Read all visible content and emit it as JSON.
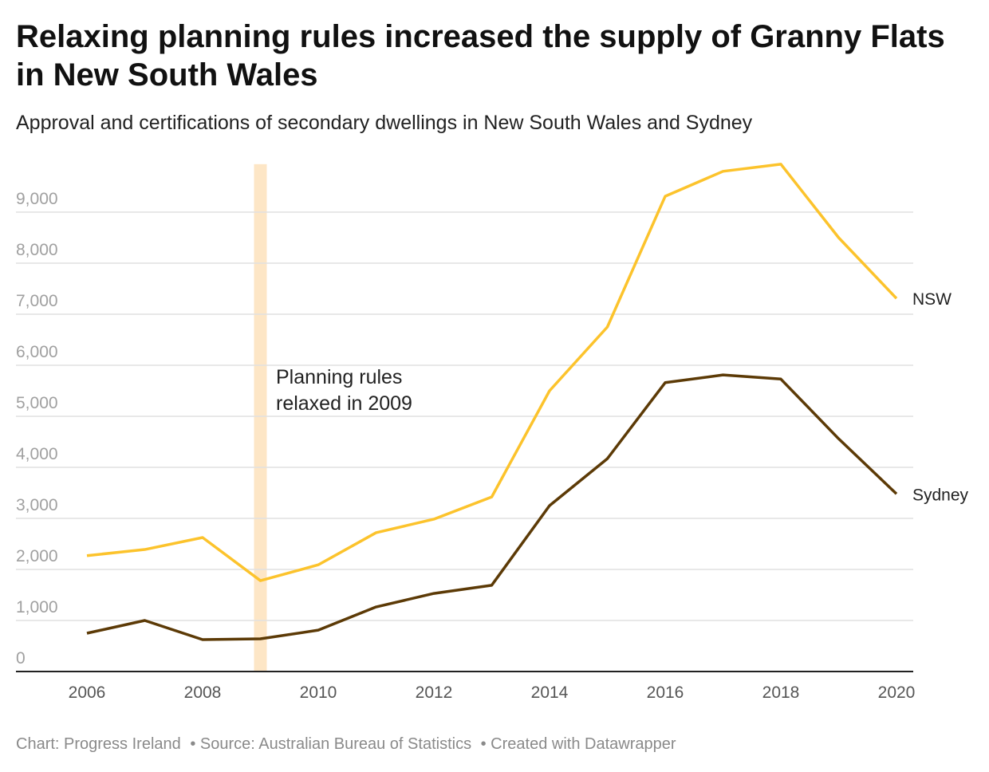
{
  "title": "Relaxing planning rules increased the supply of Granny Flats in New South Wales",
  "subtitle": "Approval and certifications of secondary dwellings in New South Wales and Sydney",
  "footer": {
    "chart": "Chart: Progress Ireland",
    "source": "• Source: Australian Bureau of Statistics",
    "created": "• Created with Datawrapper"
  },
  "chart_data": {
    "type": "line",
    "x": [
      2006,
      2007,
      2008,
      2009,
      2010,
      2011,
      2012,
      2013,
      2014,
      2015,
      2016,
      2017,
      2018,
      2019,
      2020
    ],
    "series": [
      {
        "name": "NSW",
        "color": "#fcc32c",
        "values": [
          2270,
          2390,
          2625,
          1780,
          2090,
          2720,
          2985,
          3420,
          5500,
          6750,
          9310,
          9800,
          9940,
          8500,
          7310
        ]
      },
      {
        "name": "Sydney",
        "color": "#5c3a06",
        "values": [
          750,
          1000,
          625,
          640,
          810,
          1265,
          1530,
          1690,
          3250,
          4170,
          5660,
          5810,
          5730,
          4560,
          3480
        ]
      }
    ],
    "yticks": [
      0,
      1000,
      2000,
      3000,
      4000,
      5000,
      6000,
      7000,
      8000,
      9000
    ],
    "ytick_labels": [
      "0",
      "1,000",
      "2,000",
      "3,000",
      "4,000",
      "5,000",
      "6,000",
      "7,000",
      "8,000",
      "9,000"
    ],
    "xticks": [
      2006,
      2008,
      2010,
      2012,
      2014,
      2016,
      2018,
      2020
    ],
    "ylim": [
      0,
      9940
    ],
    "xlim": [
      2006,
      2020
    ],
    "highlight": {
      "year": 2009,
      "color": "#fde6c6",
      "annotation": [
        "Planning rules",
        "relaxed in 2009"
      ]
    },
    "grid": true,
    "legend": "direct-labels-right"
  }
}
